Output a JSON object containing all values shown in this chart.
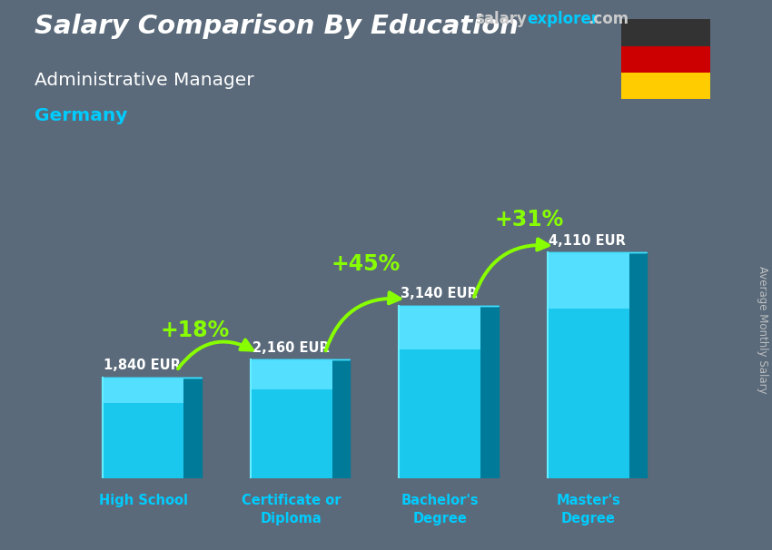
{
  "title_salary": "Salary Comparison By Education",
  "subtitle": "Administrative Manager",
  "country": "Germany",
  "ylabel": "Average Monthly Salary",
  "categories": [
    "High School",
    "Certificate or\nDiploma",
    "Bachelor's\nDegree",
    "Master's\nDegree"
  ],
  "values": [
    1840,
    2160,
    3140,
    4110
  ],
  "value_labels": [
    "1,840 EUR",
    "2,160 EUR",
    "3,140 EUR",
    "4,110 EUR"
  ],
  "pct_labels": [
    "+18%",
    "+45%",
    "+31%"
  ],
  "bar_color_face": "#1ac8ed",
  "bar_color_light": "#55dfff",
  "bar_color_dark": "#0099bb",
  "bar_color_side": "#007a99",
  "bar_color_top": "#44e0ff",
  "background_color": "#5a6a7a",
  "title_color": "#ffffff",
  "subtitle_color": "#ffffff",
  "country_color": "#00ccff",
  "value_label_color": "#ffffff",
  "pct_label_color": "#88ff00",
  "arrow_color": "#88ff00",
  "watermark_salary_color": "#cccccc",
  "watermark_explorer_color": "#00ccff",
  "watermark_com_color": "#cccccc",
  "ylim": [
    0,
    5200
  ],
  "bar_width": 0.55,
  "bar_depth": 0.12
}
